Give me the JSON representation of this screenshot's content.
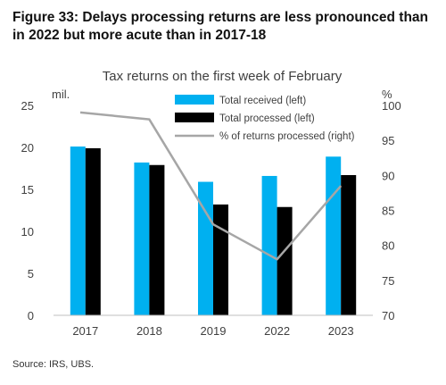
{
  "figure": {
    "title": "Figure 33: Delays processing returns are less pronounced than in 2022 but more acute than in 2017-18",
    "source": "Source: IRS, UBS."
  },
  "colors": {
    "received": "#00b0f0",
    "processed": "#000000",
    "pct_line": "#a6a6a6",
    "axis_text": "#404040"
  },
  "chart_data": {
    "type": "bar",
    "title": "Tax returns  on the first week of February",
    "categories": [
      "2017",
      "2018",
      "2019",
      "2022",
      "2023"
    ],
    "left_axis": {
      "unit_label": "mil.",
      "ylim": [
        0,
        25
      ],
      "ticks": [
        0,
        5,
        10,
        15,
        20,
        25
      ]
    },
    "right_axis": {
      "unit_label": "%",
      "ylim": [
        70,
        100
      ],
      "ticks": [
        70,
        75,
        80,
        85,
        90,
        95,
        100
      ]
    },
    "series": [
      {
        "name": "Total received (left)",
        "type": "bar",
        "axis": "left",
        "values": [
          20.1,
          18.2,
          15.9,
          16.6,
          18.9
        ]
      },
      {
        "name": "Total processed (left)",
        "type": "bar",
        "axis": "left",
        "values": [
          19.9,
          17.9,
          13.2,
          12.9,
          16.7
        ]
      },
      {
        "name": "% of returns processed (right)",
        "type": "line",
        "axis": "right",
        "values": [
          99.0,
          98.0,
          83.0,
          78.0,
          88.5
        ]
      }
    ],
    "legend_position": "top-right",
    "grid": false
  }
}
